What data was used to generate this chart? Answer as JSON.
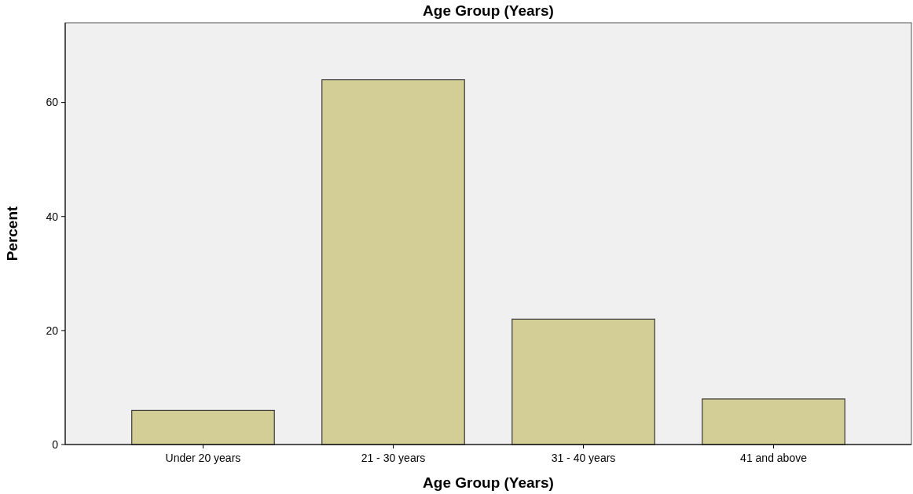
{
  "chart_data": {
    "type": "bar",
    "title": "Age Group (Years)",
    "xlabel": "Age Group (Years)",
    "ylabel": "Percent",
    "categories": [
      "Under 20 years",
      "21 - 30 years",
      "31 - 40 years",
      "41 and above"
    ],
    "values": [
      6,
      64,
      22,
      8
    ],
    "color": "#d3cd96",
    "ylim": [
      0,
      74
    ],
    "yticks": [
      0,
      20,
      40,
      60
    ],
    "grid": false
  }
}
